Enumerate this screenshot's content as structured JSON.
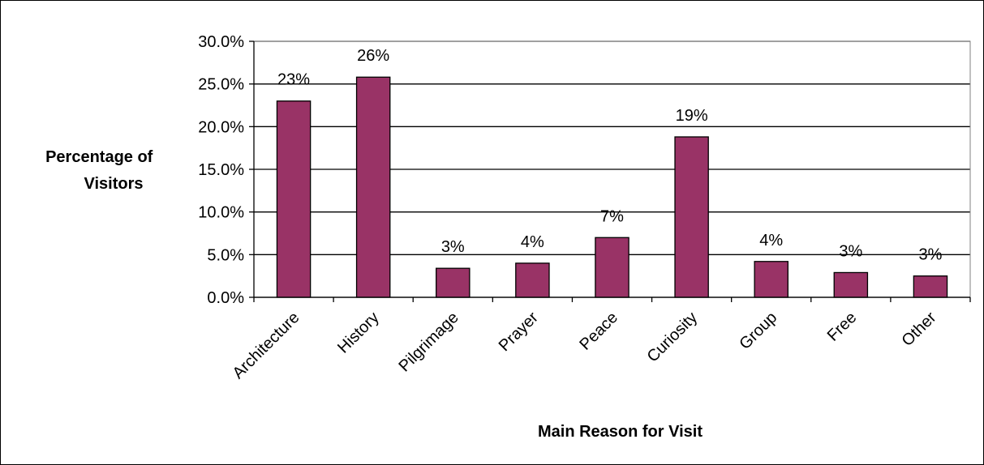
{
  "chart_data": {
    "type": "bar",
    "title": "",
    "xlabel": "Main Reason for Visit",
    "ylabel_lines": [
      "Percentage of",
      "Visitors"
    ],
    "categories": [
      "Architecture",
      "History",
      "Pilgrimage",
      "Prayer",
      "Peace",
      "Curiosity",
      "Group",
      "Free",
      "Other"
    ],
    "values": [
      23.0,
      25.8,
      3.4,
      4.0,
      7.0,
      18.8,
      4.2,
      2.9,
      2.5
    ],
    "data_labels": [
      "23%",
      "26%",
      "3%",
      "4%",
      "7%",
      "19%",
      "4%",
      "3%",
      "3%"
    ],
    "ylim": [
      0,
      30
    ],
    "yticks": [
      0,
      5,
      10,
      15,
      20,
      25,
      30
    ],
    "ytick_labels": [
      "0.0%",
      "5.0%",
      "10.0%",
      "15.0%",
      "20.0%",
      "25.0%",
      "30.0%"
    ],
    "grid": true,
    "legend": "none",
    "colors": {
      "bar_fill": "#993366",
      "bar_stroke": "#000000",
      "grid": "#000000",
      "plot_background": "#ffffff"
    }
  }
}
